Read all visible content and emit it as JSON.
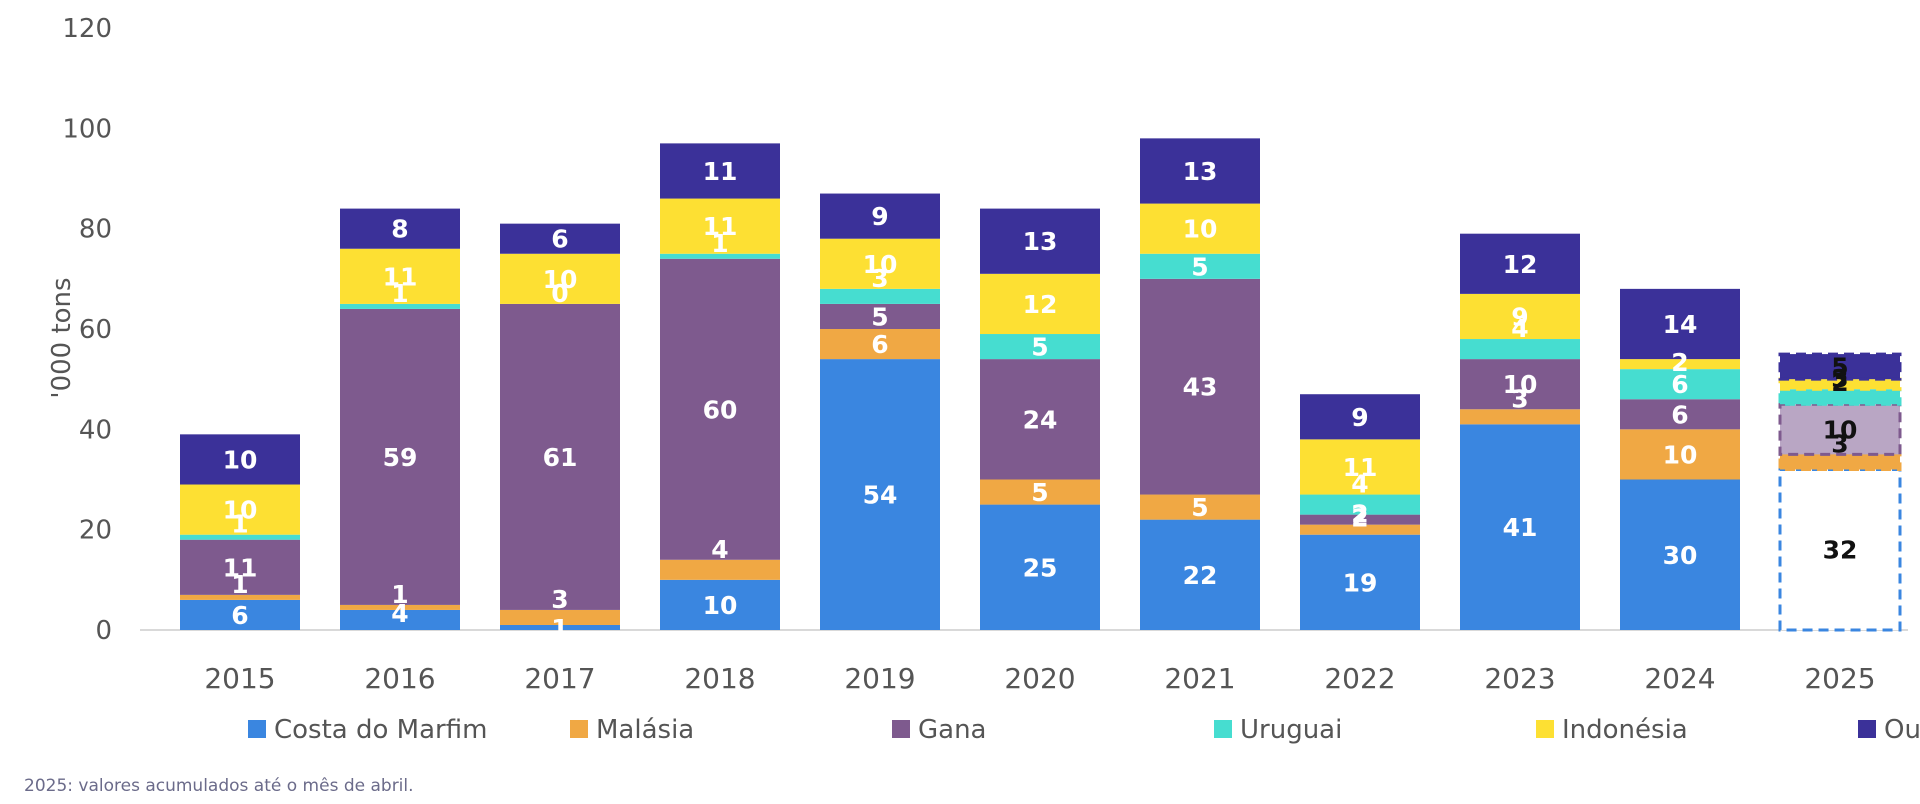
{
  "chart_data": {
    "type": "bar",
    "stacked": true,
    "ylabel": "'000 tons",
    "ylim": [
      0,
      120
    ],
    "yticks": [
      0,
      20,
      40,
      60,
      80,
      100,
      120
    ],
    "grid": false,
    "legend_position": "bottom",
    "categories": [
      "2015",
      "2016",
      "2017",
      "2018",
      "2019",
      "2020",
      "2021",
      "2022",
      "2023",
      "2024",
      "2025"
    ],
    "series": [
      {
        "name": "Costa do Marfim",
        "color": "#3a86e0",
        "values": [
          6,
          4,
          1,
          10,
          54,
          25,
          22,
          19,
          41,
          30,
          32
        ]
      },
      {
        "name": "Malásia",
        "color": "#f0a844",
        "values": [
          1,
          1,
          3,
          4,
          6,
          5,
          5,
          2,
          3,
          10,
          3
        ]
      },
      {
        "name": "Gana",
        "color": "#7e5a8e",
        "values": [
          11,
          59,
          61,
          60,
          5,
          24,
          43,
          2,
          10,
          6,
          10
        ]
      },
      {
        "name": "Uruguai",
        "color": "#46ddd0",
        "values": [
          1,
          1,
          0,
          1,
          3,
          5,
          5,
          4,
          4,
          6,
          3
        ]
      },
      {
        "name": "Indonésia",
        "color": "#fde033",
        "values": [
          10,
          11,
          10,
          11,
          10,
          12,
          10,
          11,
          9,
          2,
          2
        ]
      },
      {
        "name": "Outros",
        "color": "#3b3199",
        "values": [
          10,
          8,
          6,
          11,
          9,
          13,
          13,
          9,
          12,
          14,
          5
        ]
      }
    ],
    "partial_category": "2025",
    "footnote": "2025: valores acumulados até o mês de abril."
  }
}
